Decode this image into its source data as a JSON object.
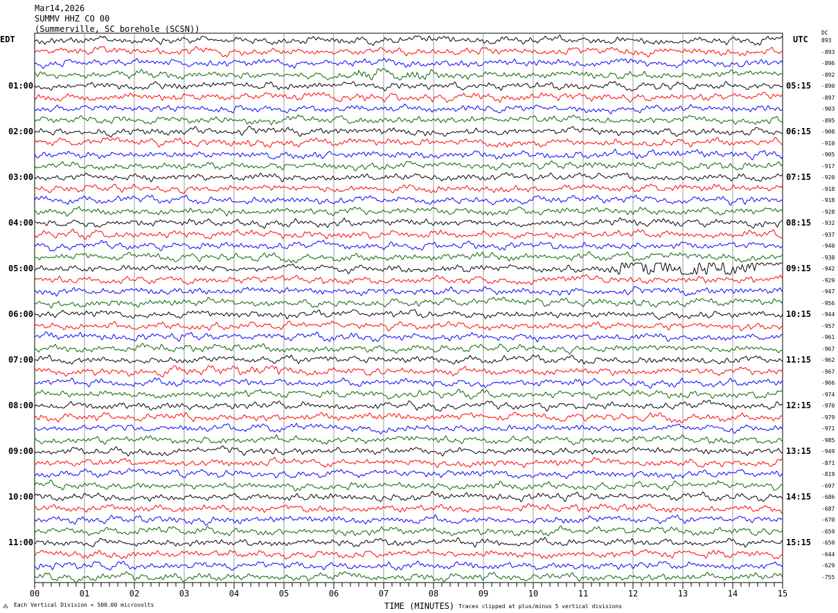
{
  "header": {
    "date": "Mar14,2026",
    "station": "SUMMV HHZ CO 00",
    "location": "(Summerville, SC borehole (SCSN))"
  },
  "left_timezone": "EDT",
  "right_timezone": "UTC",
  "dc_label": "DC",
  "footer": {
    "scale_note": "Each Vertical Division =  500.00 microvolts",
    "xlabel": "TIME (MINUTES)",
    "clip_note": "Traces clipped at plus/minus 5 vertical divisions"
  },
  "chart_data": {
    "type": "line",
    "subtype": "helicorder",
    "xlabel": "TIME (MINUTES)",
    "xlim": [
      0,
      15
    ],
    "x_ticks": [
      "00",
      "01",
      "02",
      "03",
      "04",
      "05",
      "06",
      "07",
      "08",
      "09",
      "10",
      "11",
      "12",
      "13",
      "14",
      "15"
    ],
    "grid": true,
    "trace_colors": [
      "#000000",
      "#ff0000",
      "#0000ff",
      "#006400"
    ],
    "left_hour_labels": [
      "01:00",
      "02:00",
      "03:00",
      "04:00",
      "05:00",
      "06:00",
      "07:00",
      "08:00",
      "09:00",
      "10:00",
      "11:00"
    ],
    "right_hour_labels": [
      "05:15",
      "06:15",
      "07:15",
      "08:15",
      "09:15",
      "10:15",
      "11:15",
      "12:15",
      "13:15",
      "14:15",
      "15:15"
    ],
    "dc_offsets": [
      "893",
      "-893",
      "-896",
      "-892",
      "-890",
      "-897",
      "-903",
      "-895",
      "-908",
      "-910",
      "-905",
      "-917",
      "-920",
      "-918",
      "-918",
      "-928",
      "-932",
      "-937",
      "-940",
      "-938",
      "-942",
      "-929",
      "-947",
      "-956",
      "-944",
      "-957",
      "-961",
      "-967",
      "-962",
      "-967",
      "-966",
      "-974",
      "-970",
      "-979",
      "-971",
      "-985",
      "-949",
      "-871",
      "-819",
      "-697",
      "-686",
      "-687",
      "-670",
      "-659",
      "-650",
      "-644",
      "-629",
      "-755"
    ],
    "trace_count": 48,
    "minutes_per_trace": 15,
    "notable_signals": [
      {
        "trace": 3,
        "start_min": 6.3,
        "end_min": 8.0,
        "relative_amplitude": 1.8
      },
      {
        "trace": 20,
        "start_min": 11.5,
        "end_min": 15.0,
        "relative_amplitude": 3.0
      },
      {
        "trace": 29,
        "start_min": 2.5,
        "end_min": 5.0,
        "relative_amplitude": 1.4
      }
    ]
  }
}
